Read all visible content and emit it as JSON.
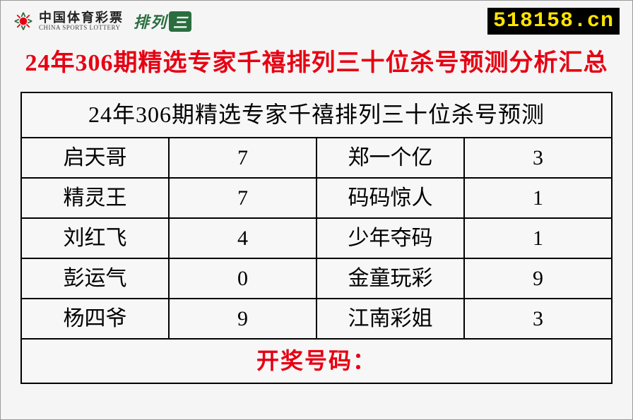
{
  "header": {
    "logo_cn": "中国体育彩票",
    "logo_en": "CHINA SPORTS LOTTERY",
    "pailie_label": "排列",
    "pailie_num": "三",
    "site_url": "518158.cn"
  },
  "main_title": "24年306期精选专家千禧排列三十位杀号预测分析汇总",
  "table": {
    "title": "24年306期精选专家千禧排列三十位杀号预测",
    "rows": [
      {
        "name_l": "启天哥",
        "num_l": "7",
        "name_r": "郑一个亿",
        "num_r": "3"
      },
      {
        "name_l": "精灵王",
        "num_l": "7",
        "name_r": "码码惊人",
        "num_r": "1"
      },
      {
        "name_l": "刘红飞",
        "num_l": "4",
        "name_r": "少年夺码",
        "num_r": "1"
      },
      {
        "name_l": "彭运气",
        "num_l": "0",
        "name_r": "金童玩彩",
        "num_r": "9"
      },
      {
        "name_l": "杨四爷",
        "num_l": "9",
        "name_r": "江南彩姐",
        "num_r": "3"
      }
    ],
    "footer_label": "开奖号码："
  },
  "colors": {
    "title_red": "#e60012",
    "badge_bg": "#000000",
    "badge_fg": "#ffe400",
    "brand_green": "#2a6e3f",
    "border": "#000000"
  }
}
